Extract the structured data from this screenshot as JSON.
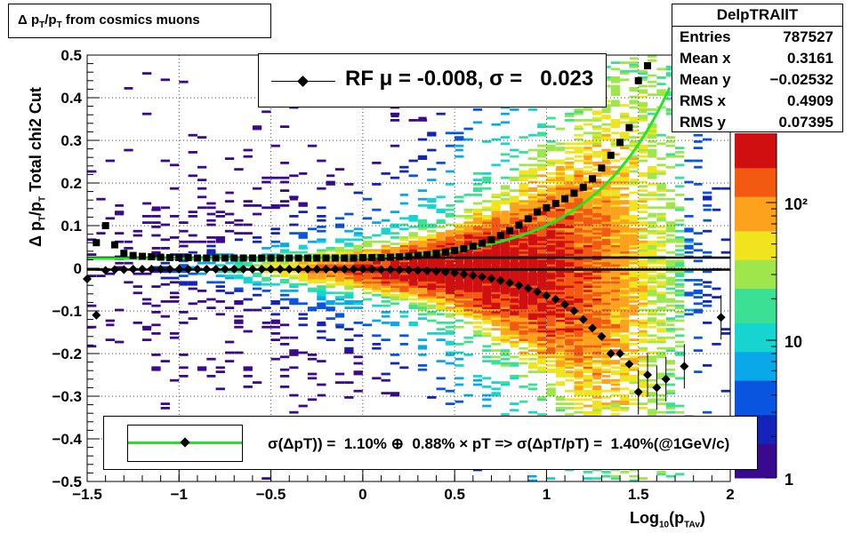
{
  "title_box": {
    "prefix": "Δ p",
    "sub1": "T",
    "mid": "/p",
    "sub2": "T",
    "rest": " from cosmics muons"
  },
  "stats": {
    "title": "DelpTRAllT",
    "rows": [
      {
        "name": "Entries",
        "value": "787527"
      },
      {
        "name": "Mean x",
        "value": "0.3161"
      },
      {
        "name": "Mean y",
        "value": "−0.02532"
      },
      {
        "name": "RMS x",
        "value": "0.4909"
      },
      {
        "name": "RMS y",
        "value": "0.07395"
      }
    ]
  },
  "rf_legend": {
    "text": "RF μ = -0.008, σ =   0.023"
  },
  "fit_legend": {
    "text": "σ(ΔpT)) =  1.10% ⊕  0.88% × pT => σ(ΔpT/pT) =  1.40%(@1GeV/c)"
  },
  "x_axis_title": {
    "base": "Log",
    "sub1": "10",
    "open": "(p",
    "sub2": "TAv",
    "close": ")"
  },
  "y_axis_title": {
    "part1": "Δ p",
    "sub1": "T",
    "part2": "/p",
    "sub2": "T",
    "part3": "  Total chi2 Cut"
  },
  "colors": {
    "fit_line": "#22e622",
    "palette": [
      "#3a0a8e",
      "#1424b8",
      "#0a55e0",
      "#0aa8e8",
      "#16d4d0",
      "#3ce094",
      "#9ee64c",
      "#f0e41e",
      "#fca21c",
      "#f25a12",
      "#d01010"
    ]
  },
  "chart_data": {
    "type": "heatmap",
    "xlabel": "Log10(pTAv)",
    "ylabel": "Δ pT/pT  Total chi2 Cut",
    "xlim": [
      -1.5,
      2.0
    ],
    "ylim": [
      -0.5,
      0.5
    ],
    "x_ticks": [
      "−1.5",
      "−1",
      "−0.5",
      "0",
      "0.5",
      "1",
      "1.5",
      "2"
    ],
    "y_ticks": [
      "−0.5",
      "−0.4",
      "−0.3",
      "−0.2",
      "−0.1",
      "0",
      "0.1",
      "0.2",
      "0.3",
      "0.4",
      "0.5"
    ],
    "z_scale": "log",
    "z_ticks": [
      "1",
      "10",
      "10²"
    ],
    "grid": true,
    "sigma_points": {
      "x": [
        -1.45,
        -1.4,
        -1.35,
        -1.3,
        -1.25,
        -1.2,
        -1.15,
        -1.1,
        -1.05,
        -1.0,
        -0.95,
        -0.9,
        -0.85,
        -0.8,
        -0.75,
        -0.7,
        -0.65,
        -0.6,
        -0.55,
        -0.5,
        -0.45,
        -0.4,
        -0.35,
        -0.3,
        -0.25,
        -0.2,
        -0.15,
        -0.1,
        -0.05,
        0.0,
        0.05,
        0.1,
        0.15,
        0.2,
        0.25,
        0.3,
        0.35,
        0.4,
        0.45,
        0.5,
        0.55,
        0.6,
        0.65,
        0.7,
        0.75,
        0.8,
        0.85,
        0.9,
        0.95,
        1.0,
        1.05,
        1.1,
        1.15,
        1.2,
        1.25,
        1.3,
        1.35,
        1.4,
        1.45,
        1.5,
        1.55
      ],
      "y": [
        0.06,
        0.1,
        0.055,
        0.035,
        0.03,
        0.028,
        0.027,
        0.026,
        0.025,
        0.025,
        0.025,
        0.024,
        0.024,
        0.024,
        0.024,
        0.024,
        0.024,
        0.024,
        0.024,
        0.024,
        0.024,
        0.024,
        0.024,
        0.024,
        0.024,
        0.024,
        0.024,
        0.024,
        0.024,
        0.025,
        0.025,
        0.025,
        0.026,
        0.027,
        0.028,
        0.03,
        0.032,
        0.035,
        0.038,
        0.042,
        0.046,
        0.052,
        0.059,
        0.067,
        0.077,
        0.088,
        0.101,
        0.116,
        0.132,
        0.142,
        0.152,
        0.163,
        0.176,
        0.19,
        0.21,
        0.235,
        0.265,
        0.295,
        0.33,
        0.44,
        0.475
      ]
    },
    "mean_points": {
      "x": [
        -1.5,
        -1.45,
        -1.4,
        -1.35,
        -1.3,
        -1.25,
        -1.2,
        -1.15,
        -1.1,
        -1.05,
        -1.0,
        -0.95,
        -0.9,
        -0.85,
        -0.8,
        -0.75,
        -0.7,
        -0.65,
        -0.6,
        -0.55,
        -0.5,
        -0.45,
        -0.4,
        -0.35,
        -0.3,
        -0.25,
        -0.2,
        -0.15,
        -0.1,
        -0.05,
        0.0,
        0.05,
        0.1,
        0.15,
        0.2,
        0.25,
        0.3,
        0.35,
        0.4,
        0.45,
        0.5,
        0.55,
        0.6,
        0.65,
        0.7,
        0.75,
        0.8,
        0.85,
        0.9,
        0.95,
        1.0,
        1.05,
        1.1,
        1.15,
        1.2,
        1.25,
        1.3,
        1.35,
        1.4,
        1.45,
        1.5,
        1.55,
        1.6,
        1.65,
        1.75,
        1.95
      ],
      "y": [
        -0.025,
        -0.11,
        -0.005,
        -0.003,
        -0.003,
        -0.002,
        -0.002,
        -0.002,
        -0.002,
        -0.002,
        -0.002,
        -0.002,
        -0.002,
        -0.002,
        -0.002,
        -0.002,
        -0.002,
        -0.002,
        -0.002,
        -0.002,
        -0.002,
        -0.002,
        -0.002,
        -0.002,
        -0.002,
        -0.002,
        -0.002,
        -0.002,
        -0.002,
        -0.002,
        -0.002,
        -0.002,
        -0.003,
        -0.003,
        -0.004,
        -0.004,
        -0.005,
        -0.006,
        -0.007,
        -0.009,
        -0.011,
        -0.014,
        -0.017,
        -0.02,
        -0.024,
        -0.029,
        -0.034,
        -0.04,
        -0.047,
        -0.055,
        -0.064,
        -0.073,
        -0.085,
        -0.1,
        -0.12,
        -0.14,
        -0.16,
        -0.2,
        -0.2,
        -0.225,
        -0.29,
        -0.25,
        -0.28,
        -0.26,
        -0.23,
        -0.115
      ]
    },
    "reference_lines": [
      {
        "y": 0.025,
        "color": "#000000"
      },
      {
        "y": -0.003,
        "color": "#000000"
      }
    ],
    "fit_curve": {
      "description": "sqrt(1.10%^2 + (0.88% x pT)^2), pT = 10^x",
      "params": [
        0.011,
        0.0088
      ]
    }
  }
}
